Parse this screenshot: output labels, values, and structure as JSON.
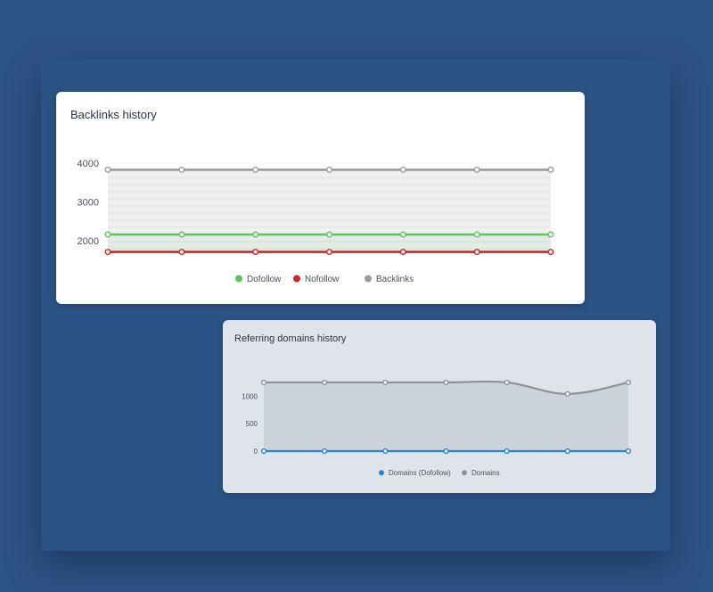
{
  "chart_data": [
    {
      "type": "line",
      "title": "Backlinks history",
      "x_points": 7,
      "ylim": [
        1700,
        4000
      ],
      "yticks": [
        "4000",
        "3000",
        "2000"
      ],
      "ytick_values": [
        4000,
        3000,
        2000
      ],
      "grid": true,
      "legend_position": "bottom",
      "series": [
        {
          "name": "Dofollow",
          "color": "#5cc55c",
          "values": [
            2160,
            2160,
            2160,
            2160,
            2160,
            2160,
            2160
          ]
        },
        {
          "name": "Nofollow",
          "color": "#d42424",
          "values": [
            1710,
            1710,
            1710,
            1710,
            1710,
            1710,
            1710
          ]
        },
        {
          "name": "Backlinks",
          "color": "#9a9a9f",
          "values": [
            3830,
            3830,
            3830,
            3830,
            3830,
            3830,
            3830
          ]
        }
      ]
    },
    {
      "type": "line",
      "title": "Referring domains history",
      "x_points": 7,
      "ylim": [
        0,
        1390
      ],
      "yticks": [
        "1000",
        "500",
        "0"
      ],
      "ytick_values": [
        1000,
        500,
        0
      ],
      "grid": true,
      "legend_position": "bottom",
      "series": [
        {
          "name": "Domains (Dofollow)",
          "color": "#2a82d6",
          "values": [
            0,
            0,
            0,
            0,
            0,
            0,
            0
          ]
        },
        {
          "name": "Domains",
          "color": "#8f9096",
          "values": [
            1260,
            1260,
            1260,
            1260,
            1260,
            1050,
            1260
          ]
        }
      ]
    }
  ]
}
